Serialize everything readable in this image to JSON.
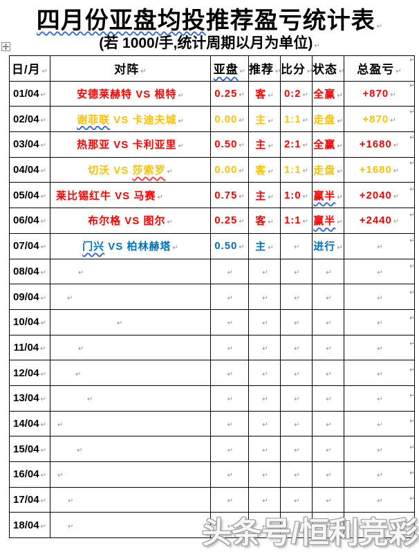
{
  "page": {
    "title_wavy": "四月份亚盘均投",
    "title_rest": "推荐盈亏统计表",
    "subtitle": "(若 1000/手,统计周期以月为单位)",
    "pilcrow": "↵",
    "watermark": "头条号/恒利竞彩",
    "move_handle": "table-move-handle"
  },
  "colors": {
    "red": "#FF0000",
    "gold": "#FFC000",
    "blue": "#0070C0",
    "squiggle_blue": "#3A6FE0",
    "squiggle_red": "#FF4040",
    "mark_gray": "#8F8F8F"
  },
  "table": {
    "headers": [
      "日/月",
      "对阵",
      "亚盘",
      "推荐",
      "比分",
      "状态",
      "总盈亏"
    ],
    "header_wavy_index": 2,
    "rows": [
      {
        "date": "01/04",
        "m_pre": "安德莱赫特 VS 根特",
        "m_wavy": "",
        "m_post": "",
        "wavy": "",
        "handicap": "0.25",
        "pick": "客",
        "score": "0:2",
        "status": "全赢",
        "status_wavy": false,
        "profit": "+870",
        "color": "red",
        "indent": -1
      },
      {
        "date": "02/04",
        "m_pre": "",
        "m_wavy": "谢菲联",
        "m_post": " VS 卡迪夫城",
        "wavy": "blue",
        "handicap": "0.00",
        "pick": "主",
        "score": "1:1",
        "status": "走盘",
        "status_wavy": false,
        "profit": "+870",
        "color": "gold",
        "indent": -1
      },
      {
        "date": "03/04",
        "m_pre": "热那亚 VS 卡利亚里",
        "m_wavy": "",
        "m_post": "",
        "wavy": "",
        "handicap": "0.50",
        "pick": "主",
        "score": "2:1",
        "status": "全赢",
        "status_wavy": false,
        "profit": "+1680",
        "color": "red",
        "indent": -1
      },
      {
        "date": "04/04",
        "m_pre": "切沃 VS ",
        "m_wavy": "莎索罗",
        "m_post": "",
        "wavy": "red",
        "handicap": "0.00",
        "pick": "客",
        "score": "1:1",
        "status": "走盘",
        "status_wavy": false,
        "profit": "+1680",
        "color": "gold",
        "indent": -1
      },
      {
        "date": "05/04",
        "m_pre": "莱比锡红牛 VS 马赛",
        "m_wavy": "",
        "m_post": "",
        "wavy": "",
        "handicap": "0.75",
        "pick": "主",
        "score": "1:0",
        "status": "赢半",
        "status_wavy": true,
        "profit": "+2040",
        "color": "red",
        "indent": 8
      },
      {
        "date": "06/04",
        "m_pre": "布尔格 VS 图尔",
        "m_wavy": "",
        "m_post": "",
        "wavy": "",
        "handicap": "0.25",
        "pick": "客",
        "score": "1:1",
        "status": "赢半",
        "status_wavy": true,
        "profit": "+2440",
        "color": "red",
        "indent": -1
      },
      {
        "date": "07/04",
        "m_pre": "",
        "m_wavy": "门兴",
        "m_post": " VS 柏林赫塔",
        "wavy": "blue",
        "handicap": "0.50",
        "pick": "主",
        "score": "",
        "status": "进行",
        "status_wavy": false,
        "profit": "",
        "color": "blue",
        "indent": -1
      },
      {
        "date": "08/04",
        "m_pre": "",
        "m_wavy": "",
        "m_post": "",
        "wavy": "",
        "handicap": "",
        "pick": "",
        "score": "",
        "status": "",
        "status_wavy": false,
        "profit": "",
        "color": "red",
        "indent": 38
      },
      {
        "date": "09/04",
        "m_pre": "",
        "m_wavy": "",
        "m_post": "",
        "wavy": "",
        "handicap": "",
        "pick": "",
        "score": "",
        "status": "",
        "status_wavy": false,
        "profit": "",
        "color": "red",
        "indent": 22
      },
      {
        "date": "10/04",
        "m_pre": "",
        "m_wavy": "",
        "m_post": "",
        "wavy": "",
        "handicap": "",
        "pick": "",
        "score": "",
        "status": "",
        "status_wavy": false,
        "profit": "",
        "color": "red",
        "indent": 94
      },
      {
        "date": "11/04",
        "m_pre": "",
        "m_wavy": "",
        "m_post": "",
        "wavy": "",
        "handicap": "",
        "pick": "",
        "score": "",
        "status": "",
        "status_wavy": false,
        "profit": "",
        "color": "red",
        "indent": 38
      },
      {
        "date": "12/04",
        "m_pre": "",
        "m_wavy": "",
        "m_post": "",
        "wavy": "",
        "handicap": "",
        "pick": "",
        "score": "",
        "status": "",
        "status_wavy": false,
        "profit": "",
        "color": "red",
        "indent": 34
      },
      {
        "date": "13/04",
        "m_pre": "",
        "m_wavy": "",
        "m_post": "",
        "wavy": "",
        "handicap": "",
        "pick": "",
        "score": "",
        "status": "",
        "status_wavy": false,
        "profit": "",
        "color": "red",
        "indent": 51
      },
      {
        "date": "14/04",
        "m_pre": "",
        "m_wavy": "",
        "m_post": "",
        "wavy": "",
        "handicap": "",
        "pick": "",
        "score": "",
        "status": "",
        "status_wavy": false,
        "profit": "",
        "color": "red",
        "indent": 8
      },
      {
        "date": "15/04",
        "m_pre": "",
        "m_wavy": "",
        "m_post": "",
        "wavy": "",
        "handicap": "",
        "pick": "",
        "score": "",
        "status": "",
        "status_wavy": false,
        "profit": "",
        "color": "red",
        "indent": 36
      },
      {
        "date": "16/04",
        "m_pre": "",
        "m_wavy": "",
        "m_post": "",
        "wavy": "",
        "handicap": "",
        "pick": "",
        "score": "",
        "status": "",
        "status_wavy": false,
        "profit": "",
        "color": "red",
        "indent": 8
      },
      {
        "date": "17/04",
        "m_pre": "",
        "m_wavy": "",
        "m_post": "",
        "wavy": "",
        "handicap": "",
        "pick": "",
        "score": "",
        "status": "",
        "status_wavy": false,
        "profit": "",
        "color": "red",
        "indent": 23
      },
      {
        "date": "18/04",
        "m_pre": "",
        "m_wavy": "",
        "m_post": "",
        "wavy": "",
        "handicap": "",
        "pick": "",
        "score": "",
        "status": "",
        "status_wavy": false,
        "profit": "",
        "color": "red",
        "indent": 23
      }
    ]
  }
}
